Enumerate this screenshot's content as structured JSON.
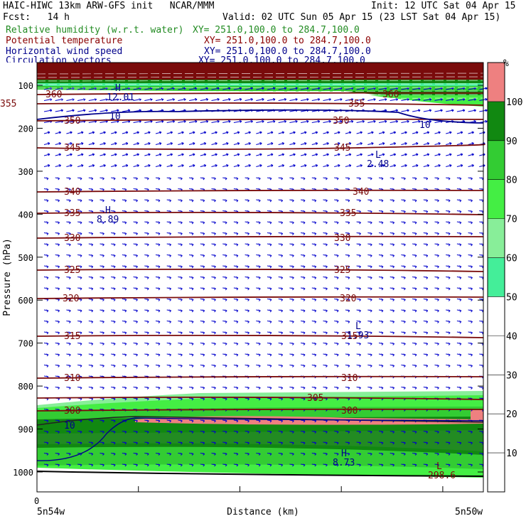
{
  "header": {
    "title": "HAIC-HIWC 13km ARW-GFS init   NCAR/MMM",
    "init": "Init: 12 UTC Sat 04 Apr 15",
    "fcst": "Fcst:   14 h",
    "valid": "Valid: 02 UTC Sun 05 Apr 15 (23 LST Sat 04 Apr 15)",
    "fields": [
      {
        "name": "Relative humidity (w.r.t. water)",
        "xy": "XY= 251.0,100.0 to 284.7,100.0",
        "color": "#228B22"
      },
      {
        "name": "Potential temperature",
        "xy": "XY= 251.0,100.0 to 284.7,100.0",
        "color": "#8B0000"
      },
      {
        "name": "Horizontal wind speed",
        "xy": "XY= 251.0,100.0 to 284.7,100.0",
        "color": "#00008B"
      },
      {
        "name": "Circulation vectors",
        "xy": "XY= 251.0,100.0 to 284.7,100.0",
        "color": "#00008B"
      }
    ]
  },
  "chart_data": {
    "type": "heatmap",
    "description_fields": [
      "relative humidity shading",
      "potential temperature contours",
      "wind speed contours",
      "circulation vectors"
    ],
    "ylabel": "Pressure (hPa)",
    "xlabel": "Distance (km)",
    "y_ticks": [
      100,
      200,
      300,
      400,
      500,
      600,
      700,
      800,
      900,
      1000
    ],
    "x_tick_label": "0",
    "x_left_label": "5n54w",
    "x_right_label": "5n50w",
    "colorbar": {
      "unit": "%",
      "levels": [
        10,
        20,
        30,
        40,
        50,
        60,
        70,
        80,
        90,
        100
      ],
      "colors": [
        "#ffffff",
        "#ffffff",
        "#ffffff",
        "#ffffff",
        "#ffffff",
        "#44ee99",
        "#88ee99",
        "#44ee44",
        "#33cc33",
        "#118811",
        "#ee8080",
        "#7a0b0b"
      ]
    },
    "theta_contours": [
      {
        "value": "360",
        "labels": [
          "360",
          "360"
        ]
      },
      {
        "value": "355",
        "labels": [
          "355",
          "355"
        ]
      },
      {
        "value": "350",
        "labels": [
          "350",
          "350"
        ]
      },
      {
        "value": "345",
        "labels": [
          "345",
          "345"
        ]
      },
      {
        "value": "340",
        "labels": [
          "340",
          "340"
        ]
      },
      {
        "value": "335",
        "labels": [
          "335",
          "335"
        ]
      },
      {
        "value": "330",
        "labels": [
          "330",
          "330"
        ]
      },
      {
        "value": "325",
        "labels": [
          "325",
          "325"
        ]
      },
      {
        "value": "320",
        "labels": [
          "320",
          "320"
        ]
      },
      {
        "value": "315",
        "labels": [
          "315",
          "315"
        ]
      },
      {
        "value": "310",
        "labels": [
          "310",
          "310"
        ]
      },
      {
        "value": "305",
        "labels": [
          "305"
        ]
      },
      {
        "value": "300",
        "labels": [
          "300",
          "300"
        ]
      }
    ],
    "wind_contours": [
      {
        "value": "10",
        "labels": [
          "10",
          "10",
          "10"
        ]
      }
    ],
    "extrema": [
      {
        "type": "H",
        "value": "12.01"
      },
      {
        "type": "L",
        "value": "2.48"
      },
      {
        "type": "H",
        "value": "8.89"
      },
      {
        "type": "L",
        "value": "1.93"
      },
      {
        "type": "H",
        "value": "8.73"
      },
      {
        "type": "L",
        "value": "298.6"
      }
    ]
  }
}
